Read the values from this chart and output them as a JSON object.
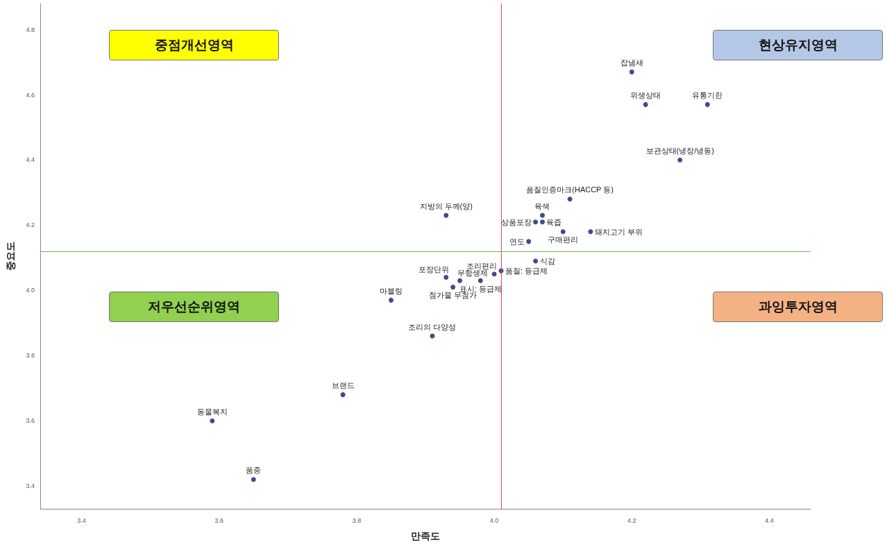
{
  "chart_data": {
    "type": "scatter",
    "xlabel": "만족도",
    "ylabel": "중요도",
    "xlim": [
      3.34,
      4.46
    ],
    "xticks": [
      3.4,
      3.6,
      3.8,
      {
        "value": 4,
        "label": "4.0"
      },
      4.2,
      4.4
    ],
    "ylim": [
      3.33,
      4.88
    ],
    "yticks": [
      3.4,
      3.6,
      3.8,
      {
        "value": 4,
        "label": "4.0"
      },
      4.2,
      4.4,
      4.6,
      4.8
    ],
    "grid": false,
    "marker": "circle",
    "series": [
      {
        "color": "#0d1f6e",
        "x": [
          4.2,
          4.22,
          4.31,
          4.27,
          4.11,
          4.07,
          4.06,
          4.07,
          4.14,
          4.1,
          4.05,
          3.93,
          4.06,
          4.01,
          4.0,
          3.98,
          3.95,
          3.93,
          3.94,
          3.85,
          3.91,
          3.78,
          3.59,
          3.65
        ],
        "values": [
          4.67,
          4.57,
          4.57,
          4.4,
          4.28,
          4.23,
          4.21,
          4.21,
          4.18,
          4.18,
          4.15,
          4.23,
          4.09,
          4.06,
          4.05,
          4.03,
          4.03,
          4.04,
          4.01,
          3.97,
          3.86,
          3.68,
          3.6,
          3.42
        ]
      }
    ],
    "ref_lines": [
      {
        "axis": "x",
        "value": 4.01,
        "color": "#e0406a"
      },
      {
        "axis": "y",
        "value": 4.115,
        "color": "#66bb55"
      }
    ],
    "annotations": [
      "중점개선영역",
      "현상유지영역",
      "저우선순위영역",
      "과잉투자영역",
      {
        "text": "잡냄새",
        "x": 4.2,
        "y": 4.67
      },
      {
        "text": "위생상태",
        "x": 4.22,
        "y": 4.57
      },
      {
        "text": "유통기한",
        "x": 4.31,
        "y": 4.57
      },
      {
        "text": "보관상태(냉장/냉동)",
        "x": 4.27,
        "y": 4.4
      },
      {
        "text": "품질인증마크(HACCP 등)",
        "x": 4.11,
        "y": 4.28
      },
      {
        "text": "육색",
        "x": 4.07,
        "y": 4.23
      },
      {
        "text": "상품포장",
        "x": 4.06,
        "y": 4.21
      },
      {
        "text": "육즙",
        "x": 4.07,
        "y": 4.21
      },
      {
        "text": "돼지고기 부위",
        "x": 4.14,
        "y": 4.18
      },
      {
        "text": "구매편리",
        "x": 4.1,
        "y": 4.18
      },
      {
        "text": "연도",
        "x": 4.05,
        "y": 4.15
      },
      {
        "text": "지방의 두께(양)",
        "x": 3.93,
        "y": 4.23
      },
      {
        "text": "식감",
        "x": 4.06,
        "y": 4.09
      },
      {
        "text": "품질: 등급제",
        "x": 4.01,
        "y": 4.06
      },
      {
        "text": "조리편리",
        "x": 4.0,
        "y": 4.05
      },
      {
        "text": "표시: 등급제",
        "x": 3.98,
        "y": 4.03
      },
      {
        "text": "무항생제",
        "x": 3.95,
        "y": 4.03
      },
      {
        "text": "포장단위",
        "x": 3.93,
        "y": 4.04
      },
      {
        "text": "첨가물 무첨가",
        "x": 3.94,
        "y": 4.01
      },
      {
        "text": "마블링",
        "x": 3.85,
        "y": 3.97
      },
      {
        "text": "조리의 다양성",
        "x": 3.91,
        "y": 3.86
      },
      {
        "text": "브랜드",
        "x": 3.78,
        "y": 3.68
      },
      {
        "text": "동물복지",
        "x": 3.59,
        "y": 3.6
      },
      {
        "text": "품종",
        "x": 3.65,
        "y": 3.42
      }
    ]
  }
}
